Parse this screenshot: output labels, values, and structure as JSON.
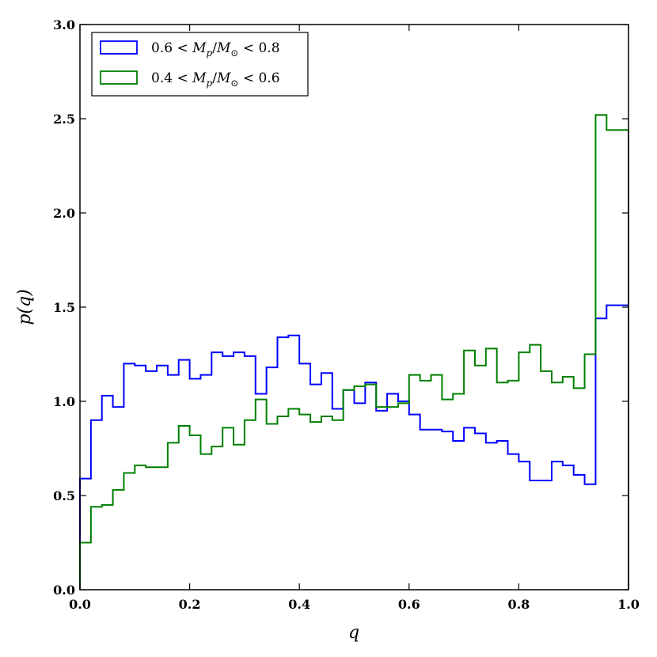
{
  "chart_data": {
    "type": "histogram",
    "title": "",
    "xlabel": "q",
    "ylabel": "p(q)",
    "xlim": [
      0.0,
      1.0
    ],
    "ylim": [
      0.0,
      3.0
    ],
    "xticks": [
      "0.0",
      "0.2",
      "0.4",
      "0.6",
      "0.8",
      "1.0"
    ],
    "yticks": [
      "0.0",
      "0.5",
      "1.0",
      "1.5",
      "2.0",
      "2.5",
      "3.0"
    ],
    "grid": false,
    "legend_position": "top-left",
    "bin_edges": [
      0.0,
      0.02,
      0.04,
      0.06,
      0.08,
      0.1,
      0.12,
      0.14,
      0.16,
      0.18,
      0.2,
      0.22,
      0.24,
      0.26,
      0.28,
      0.3,
      0.32,
      0.34,
      0.36,
      0.38,
      0.4,
      0.42,
      0.44,
      0.46,
      0.48,
      0.5,
      0.52,
      0.54,
      0.56,
      0.58,
      0.6,
      0.62,
      0.64,
      0.66,
      0.68,
      0.7,
      0.72,
      0.74,
      0.76,
      0.78,
      0.8,
      0.82,
      0.84,
      0.86,
      0.88,
      0.9,
      0.92,
      0.94,
      0.96,
      0.98,
      1.0
    ],
    "series": [
      {
        "name": "0.6 < M_p/M_⊙ < 0.8",
        "color": "#0000ff",
        "values": [
          0.59,
          0.9,
          1.03,
          0.97,
          1.2,
          1.19,
          1.16,
          1.19,
          1.14,
          1.22,
          1.12,
          1.14,
          1.26,
          1.24,
          1.26,
          1.24,
          1.04,
          1.18,
          1.34,
          1.35,
          1.2,
          1.09,
          1.15,
          0.96,
          1.06,
          0.99,
          1.1,
          0.95,
          1.04,
          1.0,
          0.93,
          0.85,
          0.85,
          0.84,
          0.79,
          0.86,
          0.83,
          0.78,
          0.79,
          0.72,
          0.68,
          0.58,
          0.58,
          0.68,
          0.66,
          0.61,
          0.56,
          1.44,
          1.51,
          1.51
        ]
      },
      {
        "name": "0.4 < M_p/M_⊙ < 0.6",
        "color": "#008000",
        "values": [
          0.25,
          0.44,
          0.45,
          0.53,
          0.62,
          0.66,
          0.65,
          0.65,
          0.78,
          0.87,
          0.82,
          0.72,
          0.76,
          0.86,
          0.77,
          0.9,
          1.01,
          0.88,
          0.92,
          0.96,
          0.93,
          0.89,
          0.92,
          0.9,
          1.06,
          1.08,
          1.09,
          0.97,
          0.97,
          0.99,
          1.14,
          1.11,
          1.14,
          1.01,
          1.04,
          1.27,
          1.19,
          1.28,
          1.1,
          1.11,
          1.26,
          1.3,
          1.16,
          1.1,
          1.13,
          1.07,
          1.25,
          2.52,
          2.44,
          2.44
        ]
      }
    ]
  }
}
